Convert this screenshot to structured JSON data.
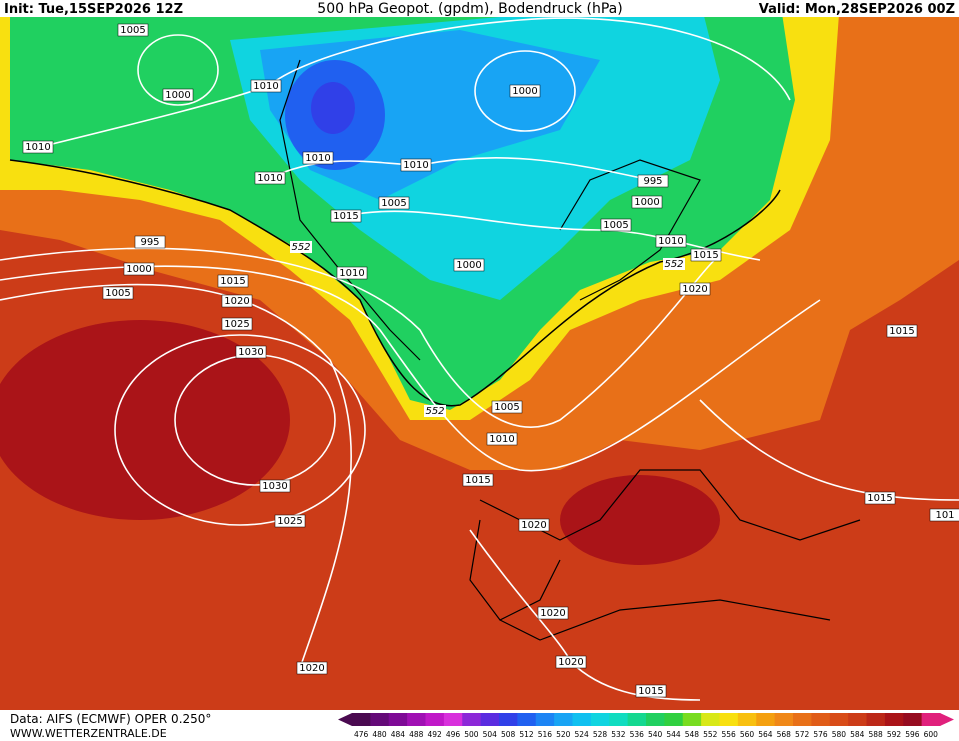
{
  "header": {
    "init": "Init: Tue,15SEP2026 12Z",
    "title": "500 hPa Geopot. (gpdm), Bodendruck (hPa)",
    "valid": "Valid: Mon,28SEP2026 00Z"
  },
  "isobar_labels": [
    1005,
    1000,
    1010,
    1010,
    1010,
    1010,
    1010,
    1015,
    1005,
    1000,
    995,
    1000,
    1005,
    1010,
    1015,
    1020,
    1015,
    995,
    1000,
    1005,
    1015,
    1020,
    1025,
    1030,
    1030,
    1025,
    1010,
    1000,
    1005,
    1010,
    1015,
    1020,
    1020,
    1020,
    1020,
    1015,
    1015,
    101
  ],
  "geopotential_labels": [
    552,
    552,
    552
  ],
  "footer": {
    "data": "Data: AIFS (ECMWF) OPER 0.250°",
    "site": "WWW.WETTERZENTRALE.DE"
  },
  "colorbar": {
    "levels": [
      476,
      480,
      484,
      488,
      492,
      496,
      500,
      504,
      508,
      512,
      516,
      520,
      524,
      528,
      532,
      536,
      540,
      544,
      548,
      552,
      556,
      560,
      564,
      568,
      572,
      576,
      580,
      584,
      588,
      592,
      596,
      600
    ],
    "colors": [
      "#4a0a50",
      "#640a78",
      "#7e0a96",
      "#a010b4",
      "#c018c8",
      "#d830dc",
      "#8c28d8",
      "#5a2ce0",
      "#3040e8",
      "#2060f0",
      "#1c84f4",
      "#18a4f4",
      "#10c0f0",
      "#10d4e0",
      "#10dcc0",
      "#14d890",
      "#20d060",
      "#30d040",
      "#78dc20",
      "#d8e818",
      "#f8e010",
      "#f8c010",
      "#f4a010",
      "#f08818",
      "#e87018",
      "#e05c18",
      "#d84c18",
      "#cc3c18",
      "#bc2818",
      "#aa1418",
      "#960c20",
      "#e0207c"
    ]
  }
}
